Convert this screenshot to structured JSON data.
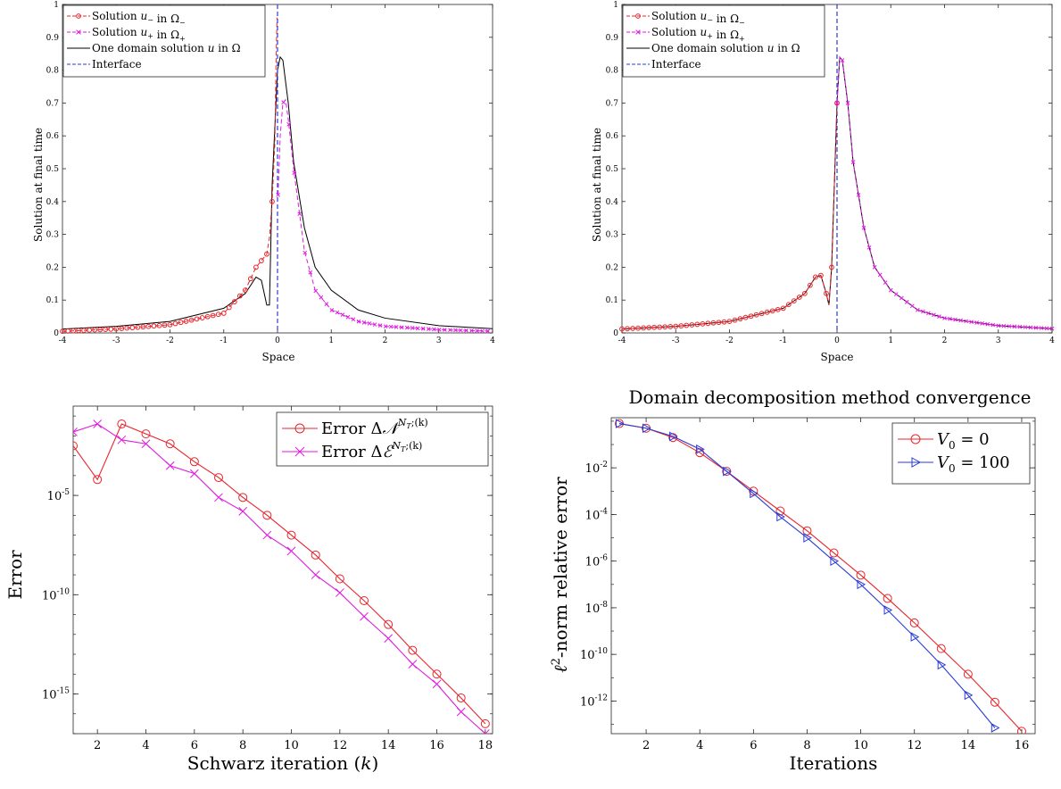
{
  "colors": {
    "red": "#e8242b",
    "magenta": "#e01ae0",
    "black": "#000000",
    "blue": "#2a3bd6"
  },
  "chart_data": [
    {
      "type": "line",
      "xlabel": "Space",
      "ylabel": "Solution at final time",
      "xlim": [
        -4,
        4
      ],
      "ylim": [
        0,
        1
      ],
      "xticks": [
        "-4",
        "-3",
        "-2",
        "-1",
        "0",
        "1",
        "2",
        "3",
        "4"
      ],
      "yticks": [
        "0",
        "0.1",
        "0.2",
        "0.3",
        "0.4",
        "0.5",
        "0.6",
        "0.7",
        "0.8",
        "0.9",
        "1"
      ],
      "legend_position": "top-left",
      "interface_x": 0,
      "series": [
        {
          "name": "Solution u− in Ω−",
          "label_pre": "Solution ",
          "label_var": "u",
          "label_sub": "−",
          "label_mid": " in ",
          "label_dom": "Ω",
          "label_dom_sub": "−",
          "color": "red",
          "style": "dashed",
          "marker": "circle"
        },
        {
          "name": "Solution u+ in Ω+",
          "label_pre": "Solution ",
          "label_var": "u",
          "label_sub": "+",
          "label_mid": " in ",
          "label_dom": "Ω",
          "label_dom_sub": "+",
          "color": "magenta",
          "style": "dashed",
          "marker": "x"
        },
        {
          "name": "One domain solution u in Ω",
          "label_pre": "One domain solution ",
          "label_var": "u",
          "label_sub": "",
          "label_mid": " in ",
          "label_dom": "Ω",
          "label_dom_sub": "",
          "color": "black",
          "style": "solid",
          "marker": "none"
        },
        {
          "name": "Interface",
          "label_pre": "Interface",
          "label_var": "",
          "label_sub": "",
          "label_mid": "",
          "label_dom": "",
          "label_dom_sub": "",
          "color": "blue",
          "style": "dashed",
          "marker": "none"
        }
      ],
      "one_domain_points": [
        [
          -4,
          0.012
        ],
        [
          -3,
          0.02
        ],
        [
          -2,
          0.035
        ],
        [
          -1,
          0.075
        ],
        [
          -0.6,
          0.12
        ],
        [
          -0.4,
          0.17
        ],
        [
          -0.3,
          0.16
        ],
        [
          -0.2,
          0.085
        ],
        [
          -0.15,
          0.085
        ],
        [
          -0.1,
          0.45
        ],
        [
          0,
          0.8
        ],
        [
          0.05,
          0.84
        ],
        [
          0.1,
          0.83
        ],
        [
          0.2,
          0.7
        ],
        [
          0.3,
          0.52
        ],
        [
          0.5,
          0.32
        ],
        [
          0.7,
          0.2
        ],
        [
          1,
          0.13
        ],
        [
          1.5,
          0.07
        ],
        [
          2,
          0.045
        ],
        [
          3,
          0.022
        ],
        [
          4,
          0.013
        ]
      ],
      "left_solution_points": [
        [
          -4,
          0.005
        ],
        [
          -3,
          0.012
        ],
        [
          -2,
          0.025
        ],
        [
          -1,
          0.06
        ],
        [
          -0.6,
          0.13
        ],
        [
          -0.4,
          0.2
        ],
        [
          -0.2,
          0.24
        ],
        [
          -0.15,
          0.29
        ],
        [
          -0.1,
          0.4
        ],
        [
          -0.05,
          0.58
        ],
        [
          -0.03,
          0.8
        ],
        [
          -0.01,
          0.96
        ]
      ],
      "right_solution_points": [
        [
          0.01,
          0.42
        ],
        [
          0.05,
          0.6
        ],
        [
          0.1,
          0.7
        ],
        [
          0.15,
          0.71
        ],
        [
          0.2,
          0.65
        ],
        [
          0.3,
          0.5
        ],
        [
          0.5,
          0.25
        ],
        [
          0.7,
          0.13
        ],
        [
          1,
          0.07
        ],
        [
          1.5,
          0.035
        ],
        [
          2,
          0.02
        ],
        [
          3,
          0.01
        ],
        [
          4,
          0.005
        ]
      ]
    },
    {
      "type": "line",
      "xlabel": "Space",
      "ylabel": "Solution at final time",
      "xlim": [
        -4,
        4
      ],
      "ylim": [
        0,
        1
      ],
      "xticks": [
        "-4",
        "-3",
        "-2",
        "-1",
        "0",
        "1",
        "2",
        "3",
        "4"
      ],
      "yticks": [
        "0",
        "0.1",
        "0.2",
        "0.3",
        "0.4",
        "0.5",
        "0.6",
        "0.7",
        "0.8",
        "0.9",
        "1"
      ],
      "legend_position": "top-left",
      "interface_x": 0,
      "series": [
        {
          "name": "Solution u− in Ω−",
          "label_pre": "Solution ",
          "label_var": "u",
          "label_sub": "−",
          "label_mid": " in ",
          "label_dom": "Ω",
          "label_dom_sub": "−",
          "color": "red",
          "style": "dashed",
          "marker": "circle"
        },
        {
          "name": "Solution u+ in Ω+",
          "label_pre": "Solution ",
          "label_var": "u",
          "label_sub": "+",
          "label_mid": " in ",
          "label_dom": "Ω",
          "label_dom_sub": "+",
          "color": "magenta",
          "style": "dashed",
          "marker": "x"
        },
        {
          "name": "One domain solution u in Ω",
          "label_pre": "One domain solution ",
          "label_var": "u",
          "label_sub": "",
          "label_mid": " in ",
          "label_dom": "Ω",
          "label_dom_sub": "",
          "color": "black",
          "style": "solid",
          "marker": "none"
        },
        {
          "name": "Interface",
          "label_pre": "Interface",
          "label_var": "",
          "label_sub": "",
          "label_mid": "",
          "label_dom": "",
          "label_dom_sub": "",
          "color": "blue",
          "style": "dashed",
          "marker": "none"
        }
      ],
      "one_domain_points": [
        [
          -4,
          0.012
        ],
        [
          -3,
          0.02
        ],
        [
          -2,
          0.035
        ],
        [
          -1,
          0.075
        ],
        [
          -0.6,
          0.12
        ],
        [
          -0.4,
          0.17
        ],
        [
          -0.3,
          0.175
        ],
        [
          -0.2,
          0.12
        ],
        [
          -0.15,
          0.085
        ],
        [
          -0.1,
          0.2
        ],
        [
          -0.05,
          0.45
        ],
        [
          0,
          0.7
        ],
        [
          0.05,
          0.84
        ],
        [
          0.1,
          0.83
        ],
        [
          0.2,
          0.7
        ],
        [
          0.3,
          0.52
        ],
        [
          0.5,
          0.32
        ],
        [
          0.7,
          0.2
        ],
        [
          1,
          0.13
        ],
        [
          1.5,
          0.07
        ],
        [
          2,
          0.045
        ],
        [
          3,
          0.022
        ],
        [
          4,
          0.013
        ]
      ],
      "left_solution_points": [
        [
          -4,
          0.012
        ],
        [
          -3,
          0.02
        ],
        [
          -2,
          0.035
        ],
        [
          -1,
          0.075
        ],
        [
          -0.6,
          0.12
        ],
        [
          -0.4,
          0.17
        ],
        [
          -0.3,
          0.175
        ],
        [
          -0.2,
          0.12
        ],
        [
          -0.15,
          0.085
        ],
        [
          -0.1,
          0.2
        ],
        [
          -0.05,
          0.45
        ],
        [
          0,
          0.7
        ]
      ],
      "right_solution_points": [
        [
          0,
          0.7
        ],
        [
          0.05,
          0.84
        ],
        [
          0.1,
          0.83
        ],
        [
          0.2,
          0.7
        ],
        [
          0.3,
          0.52
        ],
        [
          0.5,
          0.32
        ],
        [
          0.7,
          0.2
        ],
        [
          1,
          0.13
        ],
        [
          1.5,
          0.07
        ],
        [
          2,
          0.045
        ],
        [
          3,
          0.022
        ],
        [
          4,
          0.013
        ]
      ]
    },
    {
      "type": "line",
      "yscale": "log",
      "xlabel_pre": "Schwarz iteration (",
      "xlabel_var": "k",
      "xlabel_post": ")",
      "ylabel": "Error",
      "xlim": [
        1,
        18.3
      ],
      "ylim_exp": [
        -17,
        -0.5
      ],
      "xticks": [
        2,
        4,
        6,
        8,
        10,
        12,
        14,
        16,
        18
      ],
      "yticks": [
        {
          "base": "10",
          "exp": "-5",
          "val": -5
        },
        {
          "base": "10",
          "exp": "-10",
          "val": -10
        },
        {
          "base": "10",
          "exp": "-15",
          "val": -15
        }
      ],
      "legend_position": "top-right",
      "series": [
        {
          "name": "Error Δ𝒩^{N_T;(k)}",
          "label_pre": "Error Δ",
          "label_sym": "𝒩",
          "label_sup": "N",
          "label_sup_sub": "T",
          "label_sup_post": ";(k)",
          "color": "red",
          "marker": "circle",
          "x": [
            1,
            2,
            3,
            4,
            5,
            6,
            7,
            8,
            9,
            10,
            11,
            12,
            13,
            14,
            15,
            16,
            17,
            18
          ],
          "log10_y": [
            -2.5,
            -4.2,
            -1.4,
            -1.9,
            -2.4,
            -3.3,
            -4.1,
            -5.1,
            -6.0,
            -7.0,
            -8.0,
            -9.2,
            -10.3,
            -11.5,
            -12.8,
            -14.0,
            -15.2,
            -16.5
          ]
        },
        {
          "name": "Error Δℰ^{N_T;(k)}",
          "label_pre": "Error Δ",
          "label_sym": "ℰ",
          "label_sup": "N",
          "label_sup_sub": "T",
          "label_sup_post": ";(k)",
          "color": "magenta",
          "marker": "x",
          "x": [
            1,
            2,
            3,
            4,
            5,
            6,
            7,
            8,
            9,
            10,
            11,
            12,
            13,
            14,
            15,
            16,
            17,
            18
          ],
          "log10_y": [
            -1.8,
            -1.4,
            -2.2,
            -2.4,
            -3.5,
            -3.9,
            -5.1,
            -5.8,
            -7.0,
            -7.8,
            -9.0,
            -9.9,
            -11.1,
            -12.2,
            -13.5,
            -14.5,
            -15.9,
            -17.0
          ]
        }
      ]
    },
    {
      "type": "line",
      "yscale": "log",
      "title": "Domain decomposition method convergence",
      "xlabel": "Iterations",
      "ylabel_pre": "",
      "ylabel_var": "ℓ",
      "ylabel_sup": "2",
      "ylabel_post": "-norm relative error",
      "xlim": [
        0.7,
        16.5
      ],
      "ylim_exp": [
        -13.4,
        0.15
      ],
      "xticks": [
        2,
        4,
        6,
        8,
        10,
        12,
        14,
        16
      ],
      "yticks": [
        {
          "base": "10",
          "exp": "-2",
          "val": -2
        },
        {
          "base": "10",
          "exp": "-4",
          "val": -4
        },
        {
          "base": "10",
          "exp": "-6",
          "val": -6
        },
        {
          "base": "10",
          "exp": "-8",
          "val": -8
        },
        {
          "base": "10",
          "exp": "-10",
          "val": -10
        },
        {
          "base": "10",
          "exp": "-12",
          "val": -12
        }
      ],
      "legend_position": "top-right",
      "series": [
        {
          "name": "V0 = 0",
          "label_var": "V",
          "label_sub": "0",
          "label_post": " = 0",
          "color": "red",
          "marker": "circle",
          "x": [
            1,
            2,
            3,
            4,
            5,
            6,
            7,
            8,
            9,
            10,
            11,
            12,
            13,
            14,
            15,
            16
          ],
          "log10_y": [
            -0.1,
            -0.3,
            -0.7,
            -1.35,
            -2.15,
            -3.0,
            -3.85,
            -4.7,
            -5.65,
            -6.6,
            -7.6,
            -8.65,
            -9.75,
            -10.85,
            -12.05,
            -13.3
          ]
        },
        {
          "name": "V0 = 100",
          "label_var": "V",
          "label_sub": "0",
          "label_post": " = 100",
          "color": "blue",
          "marker": "triangle",
          "x": [
            1,
            2,
            3,
            4,
            5,
            6,
            7,
            8,
            9,
            10,
            11,
            12,
            13,
            14,
            15
          ],
          "log10_y": [
            -0.1,
            -0.3,
            -0.65,
            -1.2,
            -2.15,
            -3.1,
            -4.1,
            -5.0,
            -6.0,
            -7.0,
            -8.1,
            -9.25,
            -10.45,
            -11.75,
            -13.15
          ]
        }
      ]
    }
  ]
}
